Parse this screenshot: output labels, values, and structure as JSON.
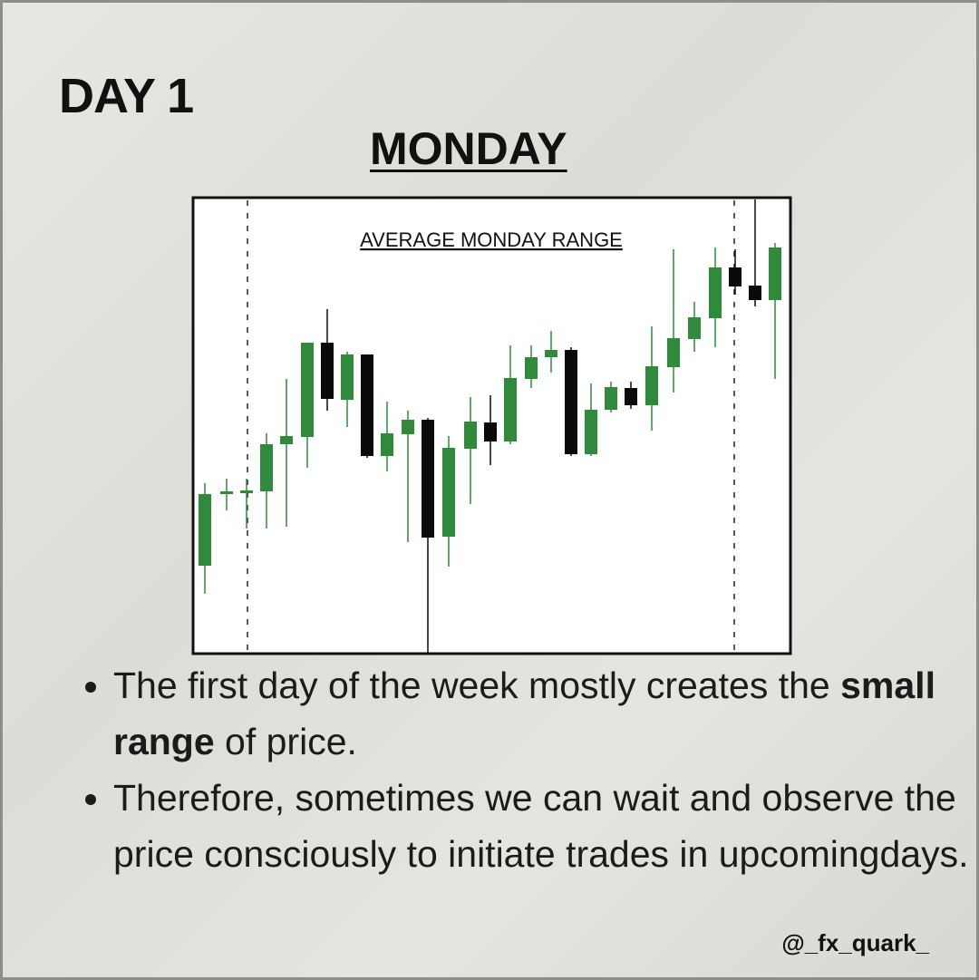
{
  "header": {
    "day": "DAY 1",
    "title": "MONDAY"
  },
  "chart": {
    "title": "AVERAGE MONDAY RANGE"
  },
  "bullets": [
    {
      "bold": "",
      "before": "The first day of the week mostly creates the ",
      "strong": "small range",
      "after": " of price."
    },
    {
      "before": "Therefore,  sometimes we can wait and observe the price consciously to initiate trades in upcomingdays."
    }
  ],
  "footer": {
    "handle": "@_fx_quark_"
  }
}
